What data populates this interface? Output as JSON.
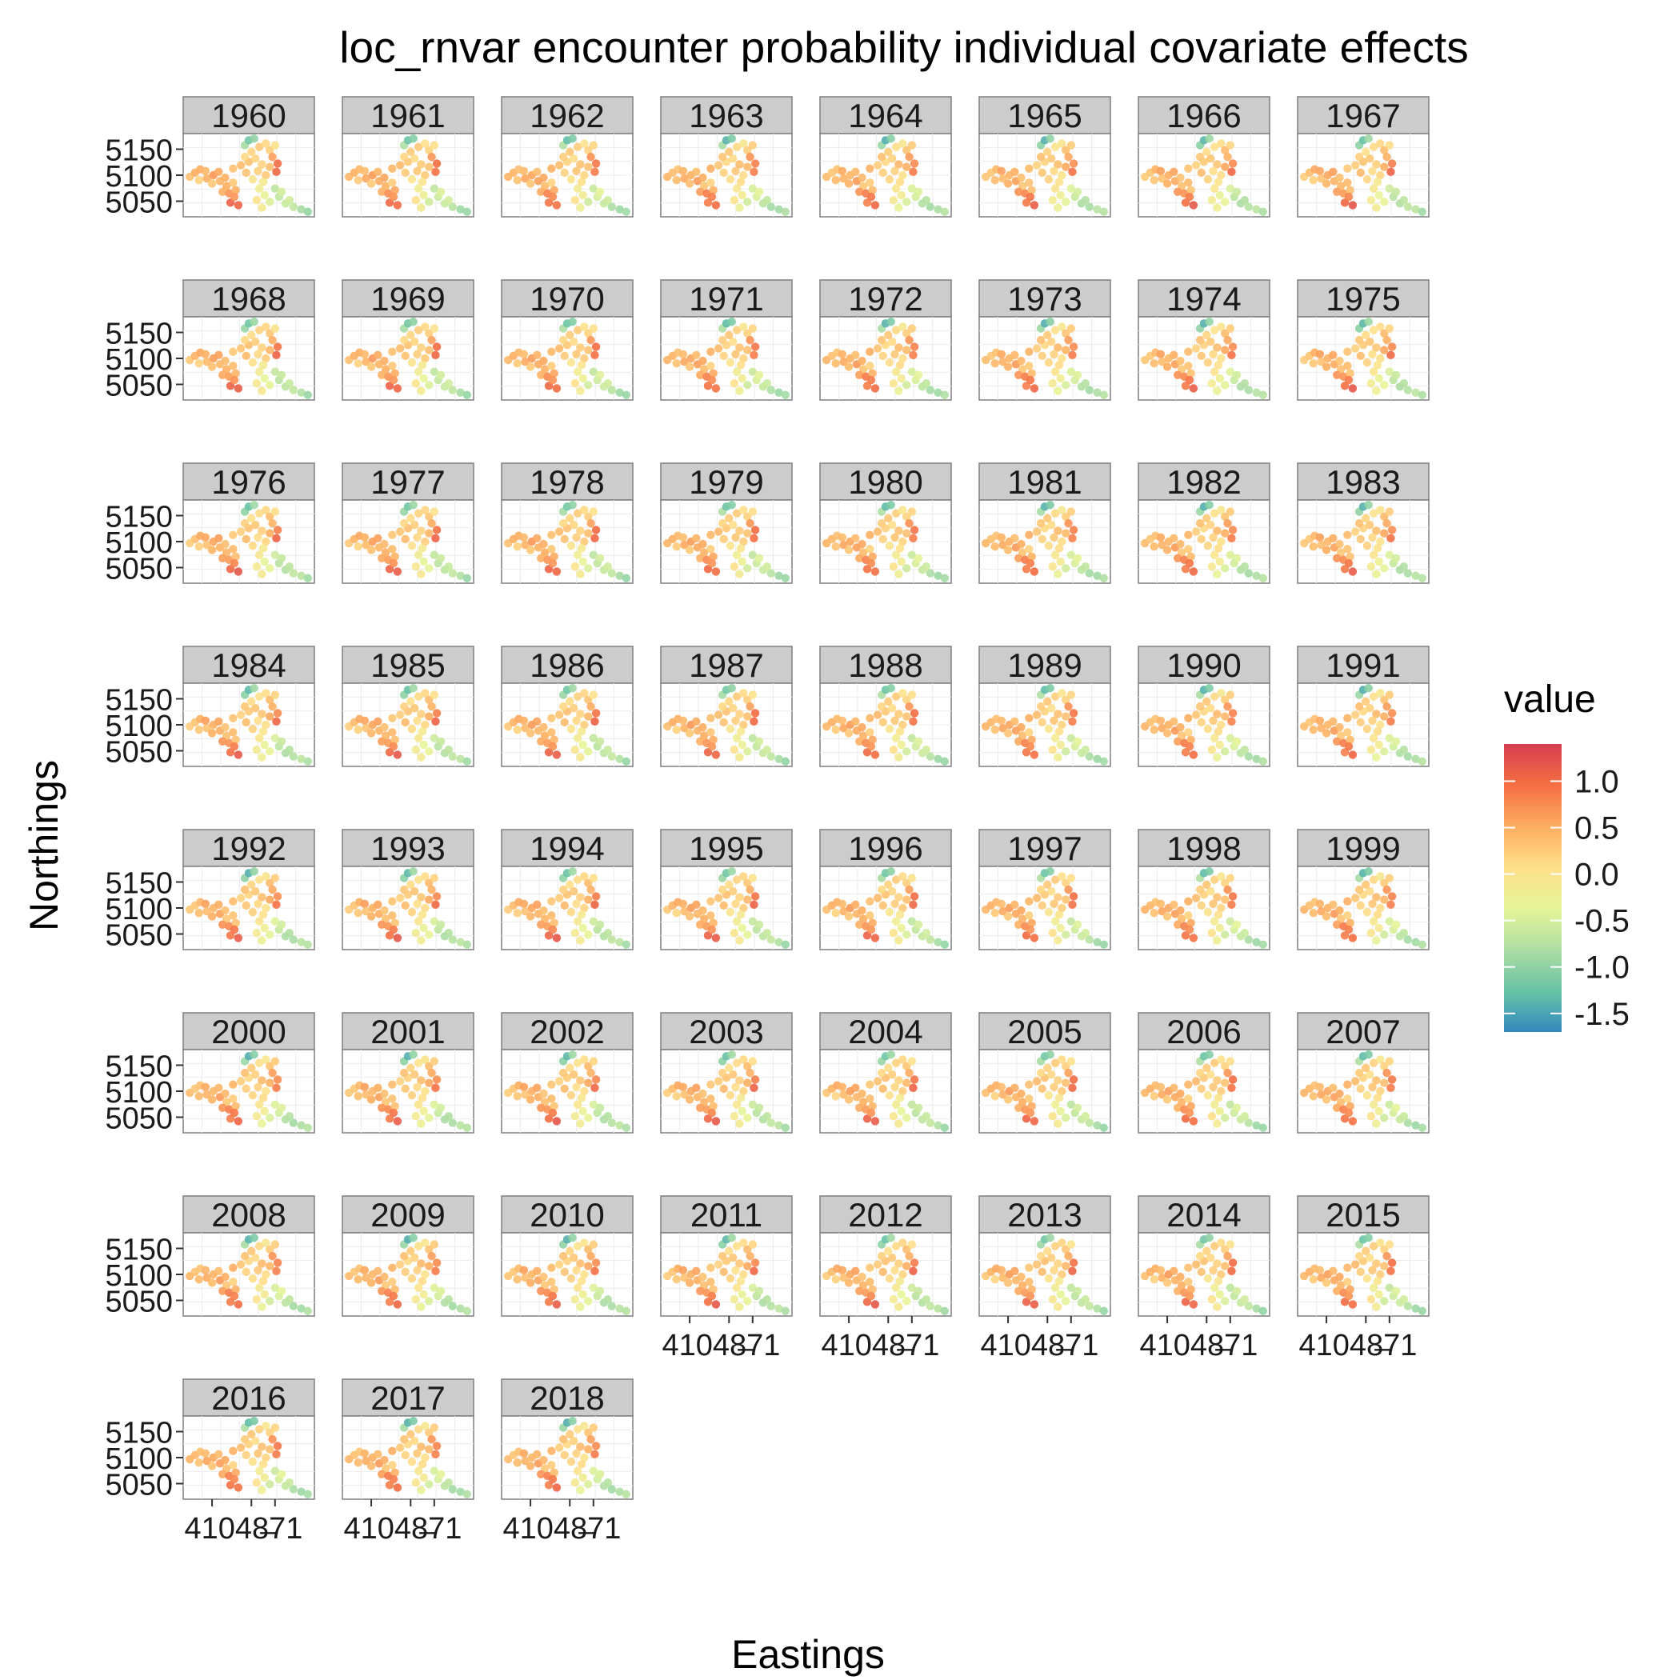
{
  "chart_data": {
    "type": "heatmap",
    "title": "loc_rnvar encounter probability individual covariate effects",
    "xlabel": "Eastings",
    "ylabel": "Northings",
    "facet_labels": [
      "1960",
      "1961",
      "1962",
      "1963",
      "1964",
      "1965",
      "1966",
      "1967",
      "1968",
      "1969",
      "1970",
      "1971",
      "1972",
      "1973",
      "1974",
      "1975",
      "1976",
      "1977",
      "1978",
      "1979",
      "1980",
      "1981",
      "1982",
      "1983",
      "1984",
      "1985",
      "1986",
      "1987",
      "1988",
      "1989",
      "1990",
      "1991",
      "1992",
      "1993",
      "1994",
      "1995",
      "1996",
      "1997",
      "1998",
      "1999",
      "2000",
      "2001",
      "2002",
      "2003",
      "2004",
      "2005",
      "2006",
      "2007",
      "2008",
      "2009",
      "2010",
      "2011",
      "2012",
      "2013",
      "2014",
      "2015",
      "2016",
      "2017",
      "2018"
    ],
    "y_ticks": [
      5150,
      5100,
      5050
    ],
    "x_tick_text": "41048̶71",
    "x_tick_labels": [
      "410",
      "440",
      "470",
      "471"
    ],
    "ylim": [
      5020,
      5180
    ],
    "legend": {
      "title": "value",
      "position": "right",
      "labels": [
        "1.0",
        "0.5",
        "0.0",
        "-0.5",
        "-1.0",
        "-1.5"
      ],
      "range": [
        -1.7,
        1.4
      ],
      "colors": [
        "#3288bd",
        "#66c2a5",
        "#abdda4",
        "#e6f598",
        "#fee08b",
        "#fdae61",
        "#f46d43",
        "#d53e4f"
      ]
    },
    "grid": true
  }
}
